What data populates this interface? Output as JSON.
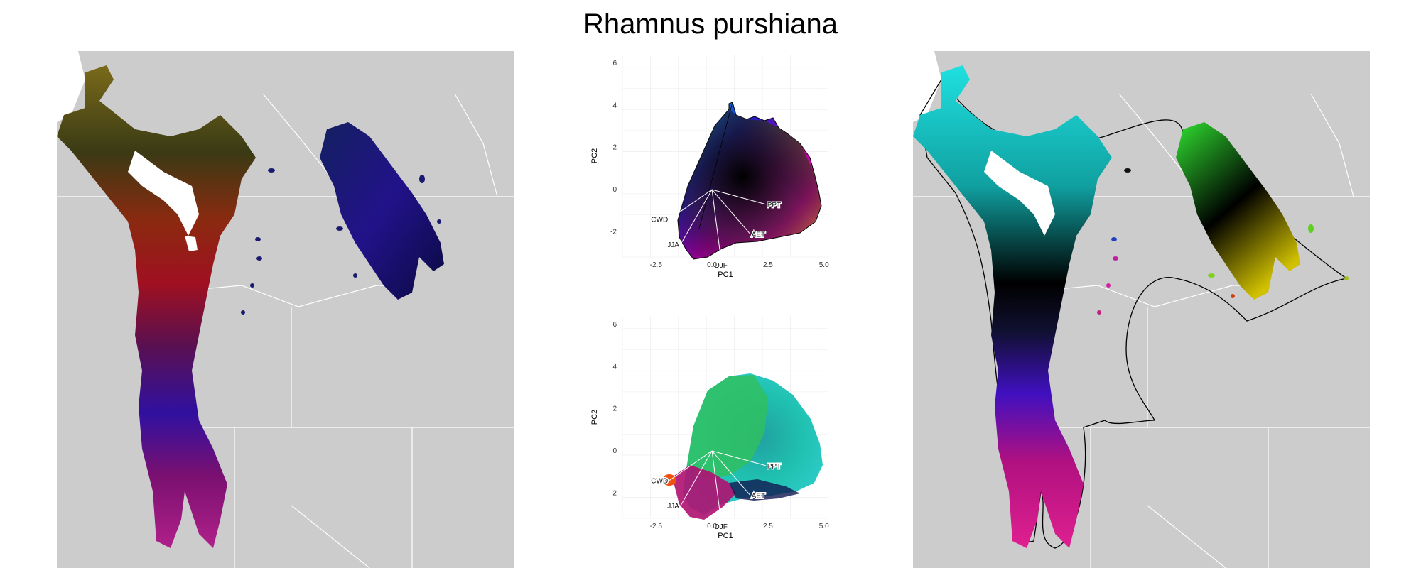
{
  "title": "Rhamnus purshiana",
  "colors": {
    "background": "#cccccc",
    "border": "#ffffff",
    "water": "#ffffff"
  },
  "chart_data": [
    {
      "type": "map",
      "panel": "left",
      "fill": "species range colored by climate PCA"
    },
    {
      "type": "scatter",
      "panel": "center-top",
      "xlabel": "PC1",
      "ylabel": "PC2",
      "xlim": [
        -4,
        5.2
      ],
      "ylim": [
        -3.2,
        6.4
      ],
      "xticks": [
        -2.5,
        0.0,
        2.5,
        5.0
      ],
      "xtick_labels": [
        "-2.5",
        "0.0",
        "2.5",
        "5.0"
      ],
      "yticks": [
        -2,
        0,
        2,
        4,
        6
      ],
      "ytick_labels": [
        "-2",
        "0",
        "2",
        "4",
        "6"
      ],
      "grid": true,
      "origin": [
        0,
        0
      ],
      "vectors": [
        {
          "label": "CWD",
          "x": -1.9,
          "y": -1.4
        },
        {
          "label": "JJA",
          "x": -1.4,
          "y": -2.6
        },
        {
          "label": "DJF",
          "x": 0.4,
          "y": -3.3
        },
        {
          "label": "AET",
          "x": 1.7,
          "y": -2.1
        },
        {
          "label": "PPT",
          "x": 2.4,
          "y": -0.7
        }
      ]
    },
    {
      "type": "scatter",
      "panel": "center-bottom",
      "xlabel": "PC1",
      "ylabel": "PC2",
      "xlim": [
        -4,
        5.2
      ],
      "ylim": [
        -3.2,
        6.4
      ],
      "xticks": [
        -2.5,
        0.0,
        2.5,
        5.0
      ],
      "xtick_labels": [
        "-2.5",
        "0.0",
        "2.5",
        "5.0"
      ],
      "yticks": [
        -2,
        0,
        2,
        4,
        6
      ],
      "ytick_labels": [
        "-2",
        "0",
        "2",
        "4",
        "6"
      ],
      "grid": true,
      "origin": [
        0,
        0
      ],
      "vectors": [
        {
          "label": "CWD",
          "x": -1.9,
          "y": -1.4
        },
        {
          "label": "JJA",
          "x": -1.4,
          "y": -2.6
        },
        {
          "label": "DJF",
          "x": 0.4,
          "y": -3.3
        },
        {
          "label": "AET",
          "x": 1.7,
          "y": -2.1
        },
        {
          "label": "PPT",
          "x": 2.4,
          "y": -0.7
        }
      ]
    },
    {
      "type": "map",
      "panel": "right",
      "fill": "species range colored by climate PCA"
    }
  ]
}
